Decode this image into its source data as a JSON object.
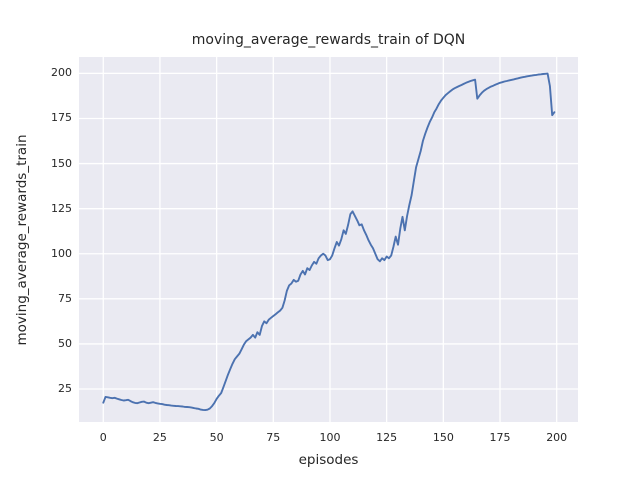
{
  "chart_data": {
    "type": "line",
    "title": "moving_average_rewards_train of DQN",
    "xlabel": "episodes",
    "ylabel": "moving_average_rewards_train",
    "x_ticks": [
      0,
      25,
      50,
      75,
      100,
      125,
      150,
      175,
      200
    ],
    "y_ticks": [
      25,
      50,
      75,
      100,
      125,
      150,
      175,
      200
    ],
    "xlim": [
      -10.7,
      209.4
    ],
    "ylim": [
      6.7,
      209.1
    ],
    "grid": true,
    "legend": false,
    "plot_bg": "#eaeaf2",
    "grid_color": "#ffffff",
    "line_color": "#4c72b0",
    "figure_bg": "#ffffff",
    "text_color": "#262626",
    "series": [
      {
        "name": "DQN",
        "x_start": 0,
        "x_step": 1,
        "y": [
          17.4,
          20.6,
          20.4,
          20.1,
          19.9,
          20.1,
          19.7,
          19.3,
          18.9,
          18.6,
          18.8,
          19.0,
          18.3,
          17.7,
          17.3,
          17.1,
          17.5,
          17.9,
          18.0,
          17.4,
          17.1,
          17.4,
          17.7,
          17.3,
          17.0,
          16.8,
          16.6,
          16.3,
          16.1,
          16.0,
          15.8,
          15.7,
          15.6,
          15.5,
          15.4,
          15.3,
          15.1,
          15.0,
          14.9,
          14.7,
          14.4,
          14.2,
          14.0,
          13.6,
          13.4,
          13.3,
          13.5,
          14.2,
          15.5,
          17.2,
          19.5,
          21.3,
          22.8,
          26.0,
          29.5,
          33.0,
          36.0,
          39.0,
          41.5,
          43.0,
          44.5,
          47.0,
          49.5,
          51.5,
          52.5,
          53.5,
          55.0,
          53.5,
          56.5,
          55.0,
          60.0,
          62.5,
          61.5,
          63.5,
          64.5,
          65.5,
          66.5,
          67.5,
          68.5,
          70.0,
          74.0,
          79.5,
          82.5,
          83.5,
          85.5,
          84.5,
          85.0,
          88.5,
          90.5,
          88.5,
          92.0,
          91.0,
          93.5,
          95.5,
          94.5,
          97.5,
          99.0,
          100.0,
          99.0,
          96.5,
          97.0,
          99.0,
          103.0,
          106.5,
          104.5,
          108.0,
          113.0,
          111.0,
          116.0,
          122.0,
          123.5,
          121.0,
          118.5,
          115.8,
          116.3,
          113.0,
          110.5,
          107.5,
          105.0,
          103.0,
          100.0,
          97.0,
          95.8,
          97.5,
          96.5,
          98.5,
          97.5,
          99.0,
          104.0,
          109.5,
          105.0,
          114.0,
          120.5,
          113.0,
          121.0,
          127.0,
          132.5,
          140.5,
          148.0,
          152.5,
          157.0,
          162.5,
          166.5,
          170.0,
          173.0,
          175.5,
          178.5,
          180.5,
          183.0,
          185.0,
          186.5,
          188.0,
          189.0,
          190.0,
          191.0,
          191.8,
          192.4,
          193.0,
          193.6,
          194.2,
          194.8,
          195.3,
          195.8,
          196.2,
          196.5,
          186.0,
          187.8,
          189.3,
          190.4,
          191.3,
          192.0,
          192.7,
          193.2,
          193.8,
          194.3,
          194.8,
          195.1,
          195.5,
          195.8,
          196.1,
          196.4,
          196.7,
          197.0,
          197.3,
          197.6,
          197.9,
          198.1,
          198.4,
          198.6,
          198.8,
          199.0,
          199.2,
          199.4,
          199.5,
          199.7,
          199.8,
          199.9,
          193.0,
          176.8,
          178.5
        ]
      }
    ]
  }
}
